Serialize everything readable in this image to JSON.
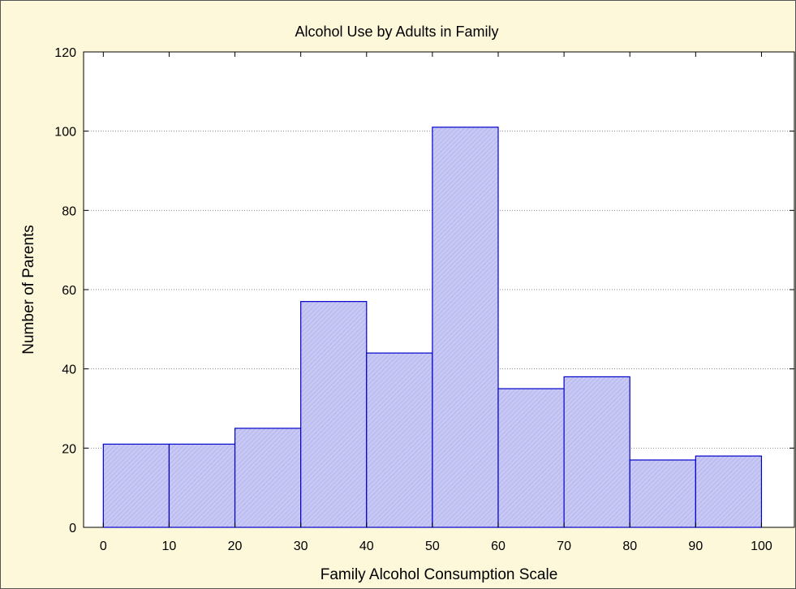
{
  "chart_data": {
    "type": "bar",
    "title": "Alcohol Use by Adults in Family",
    "xlabel": "Family Alcohol Consumption Scale",
    "ylabel": "Number of Parents",
    "bin_edges": [
      0,
      10,
      20,
      30,
      40,
      50,
      60,
      70,
      80,
      90,
      100
    ],
    "values": [
      21,
      21,
      25,
      57,
      44,
      101,
      35,
      38,
      17,
      18
    ],
    "xlim": [
      -3,
      105
    ],
    "ylim": [
      0,
      120
    ],
    "xticks": [
      0,
      10,
      20,
      30,
      40,
      50,
      60,
      70,
      80,
      90,
      100
    ],
    "yticks": [
      0,
      20,
      40,
      60,
      80,
      100,
      120
    ],
    "grid": "horizontal dotted",
    "legend": "none",
    "colors": {
      "bar_fill": "#c8c8f4",
      "bar_hatch": "#a9a9ea",
      "bar_stroke": "#0000cc",
      "background": "#fdf8da",
      "plot_background": "#ffffff",
      "grid": "#8a8a8a"
    }
  }
}
